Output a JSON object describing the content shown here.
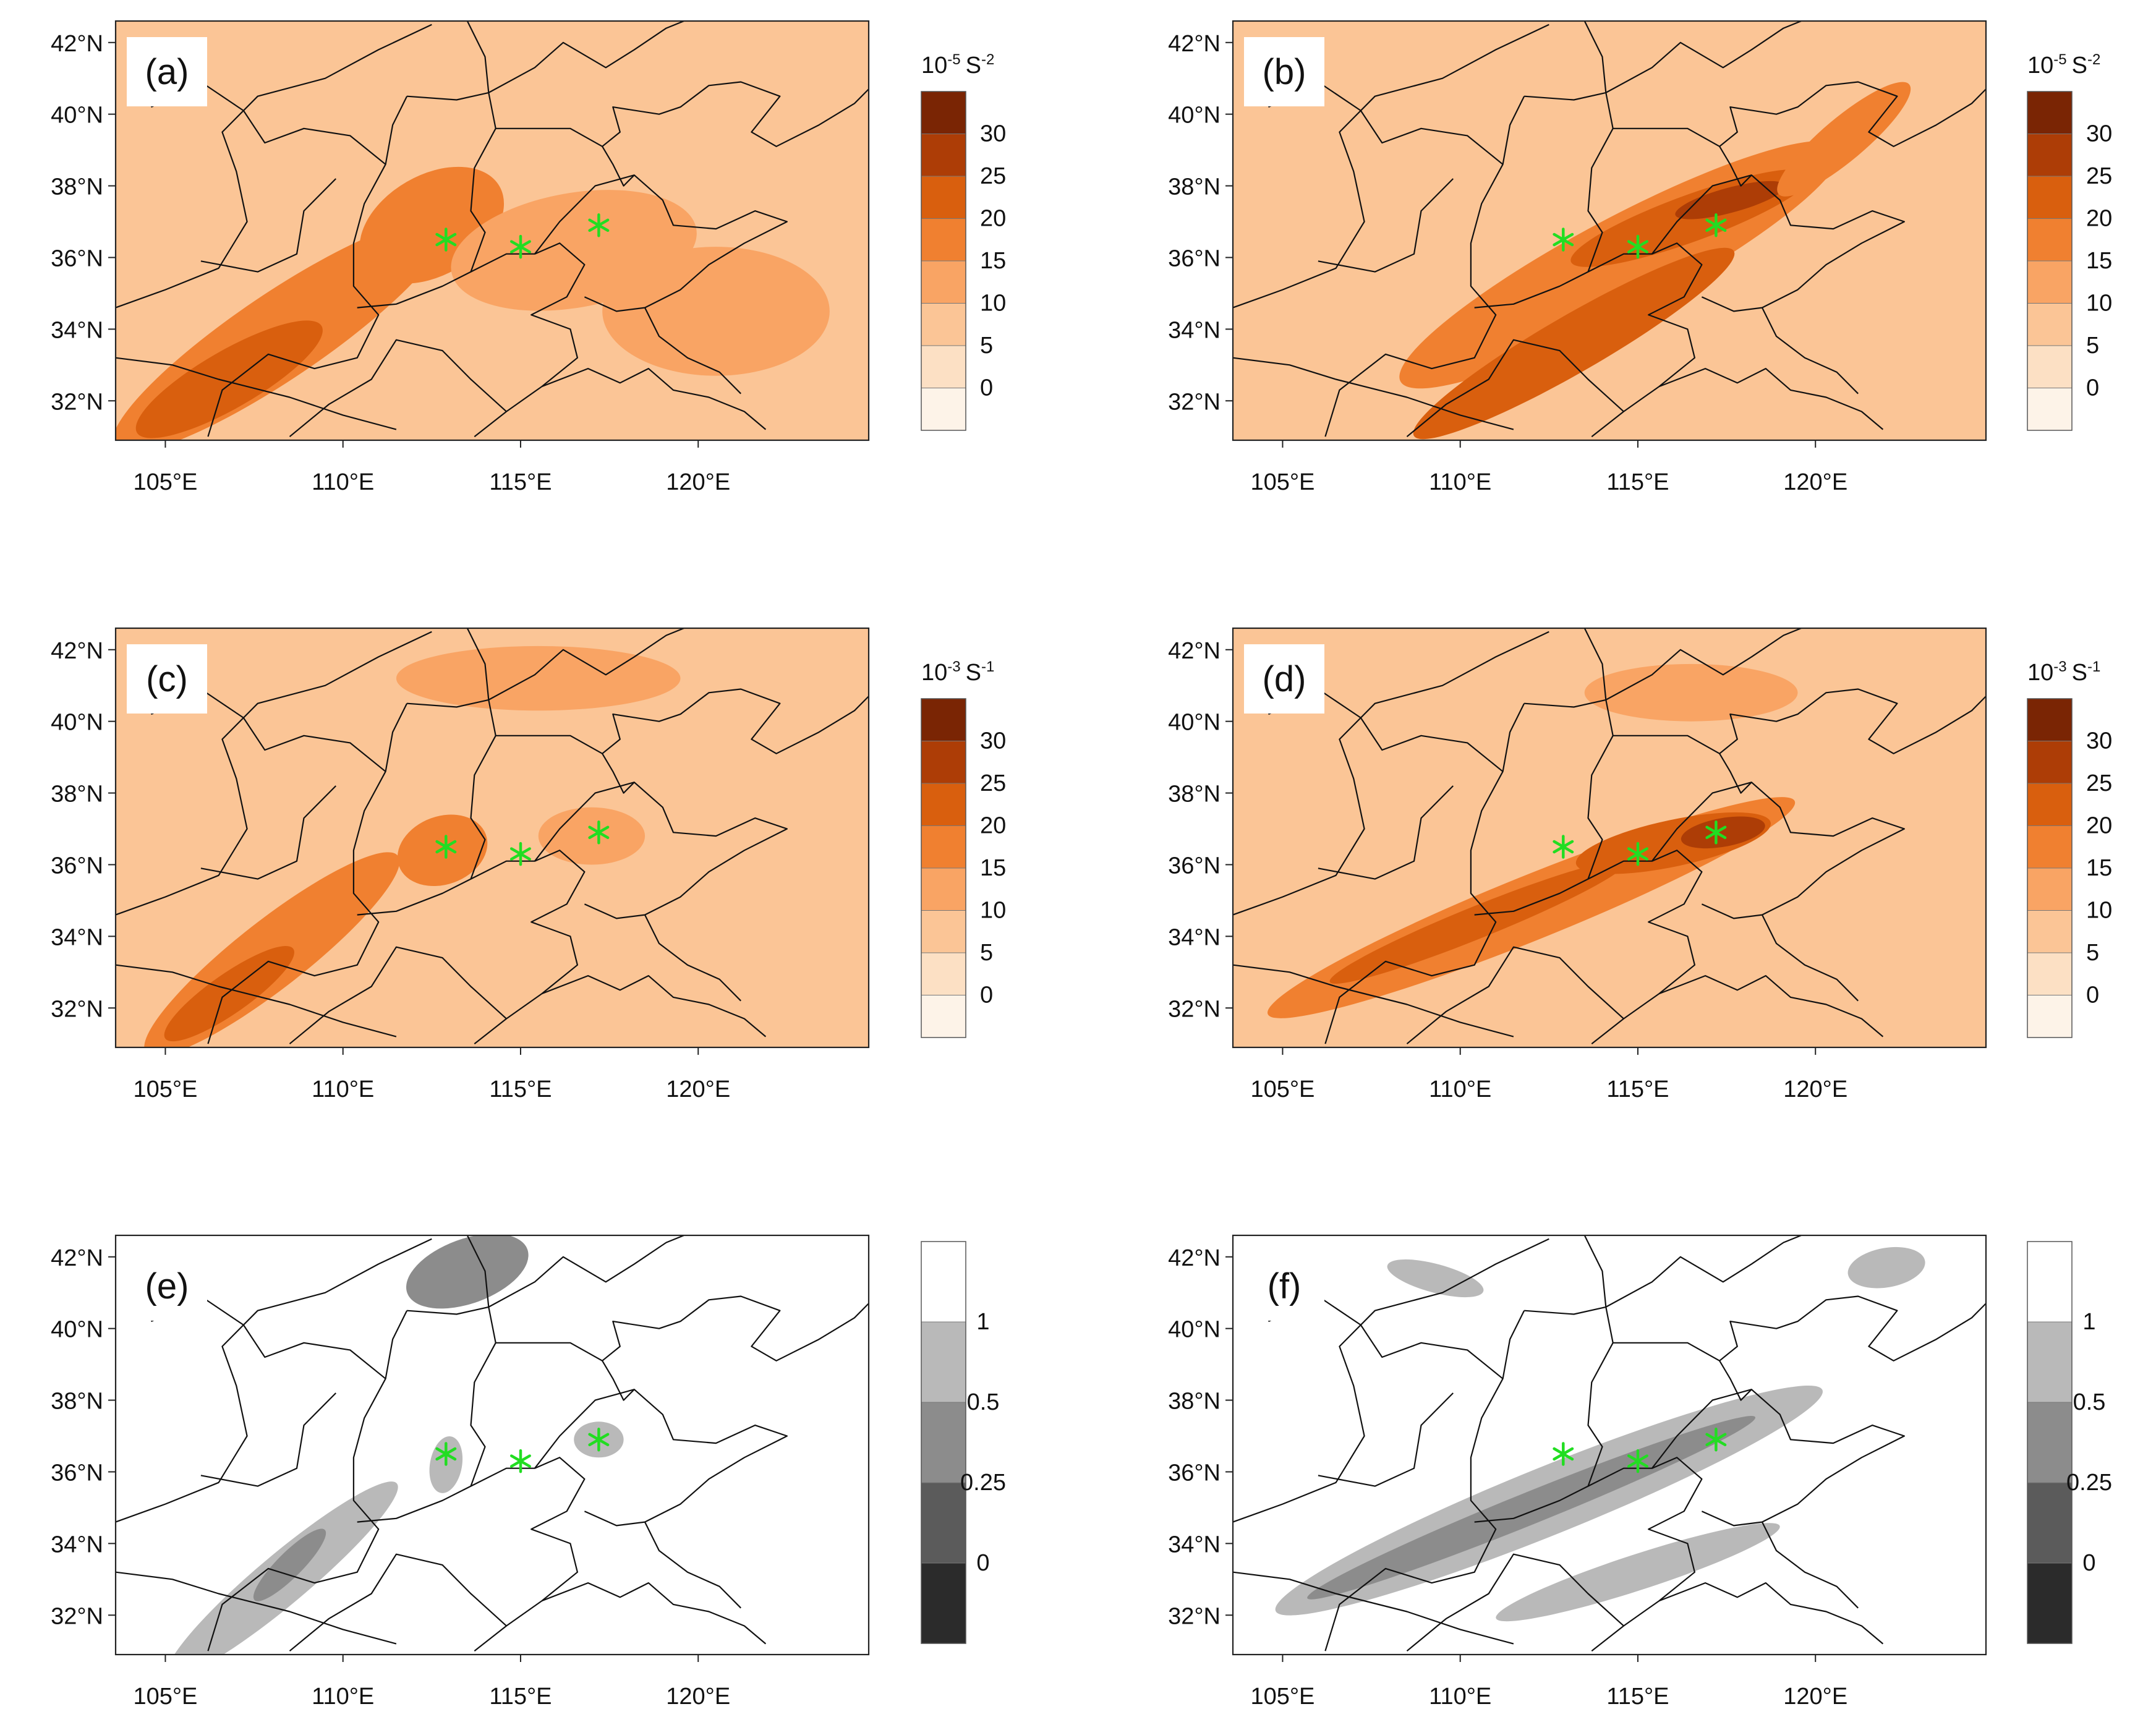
{
  "figure": {
    "y_tick_labels": [
      "42°N",
      "40°N",
      "38°N",
      "36°N",
      "34°N",
      "32°N"
    ],
    "y_tick_values": [
      42,
      40,
      38,
      36,
      34,
      32
    ],
    "x_tick_labels": [
      "105°E",
      "110°E",
      "115°E",
      "120°E"
    ],
    "x_tick_values": [
      105,
      110,
      115,
      120
    ],
    "lon_range": [
      103.6,
      124.8
    ],
    "lat_range": [
      30.9,
      42.6
    ],
    "stations": [
      {
        "lon": 112.9,
        "lat": 36.5
      },
      {
        "lon": 115.0,
        "lat": 36.3
      },
      {
        "lon": 117.2,
        "lat": 36.9
      }
    ],
    "station_color": "#22dd22",
    "boundary_color": "#111111"
  },
  "palettes": {
    "orange": [
      "#fdf3e8",
      "#fce0c4",
      "#fbc596",
      "#f9a464",
      "#f08030",
      "#d95f0e",
      "#ad3d06",
      "#7a2504"
    ],
    "gray": [
      "#2b2b2b",
      "#5b5b5b",
      "#8c8c8c",
      "#b9b9b9",
      "#ffffff"
    ]
  },
  "colorbars": {
    "row1": {
      "unit_base": "10",
      "unit_exp": "-5",
      "unit_sym": "S",
      "unit_sym_exp": "-2",
      "labels": [
        "30",
        "25",
        "20",
        "15",
        "10",
        "5",
        "0"
      ]
    },
    "row2": {
      "unit_base": "10",
      "unit_exp": "-3",
      "unit_sym": "S",
      "unit_sym_exp": "-1",
      "labels": [
        "30",
        "25",
        "20",
        "15",
        "10",
        "5",
        "0"
      ]
    },
    "row3": {
      "labels": [
        "1",
        "0.5",
        "0.25",
        "0"
      ]
    }
  },
  "panels": [
    {
      "label": "(a)",
      "palette": "orange",
      "colorbar": "row1",
      "blobs": [
        {
          "lon": 108.2,
          "lat": 33.8,
          "rx": 5.6,
          "ry": 1.2,
          "rot": -34,
          "level": 4
        },
        {
          "lon": 106.8,
          "lat": 32.6,
          "rx": 3.0,
          "ry": 0.8,
          "rot": -30,
          "level": 5
        },
        {
          "lon": 112.5,
          "lat": 36.9,
          "rx": 2.2,
          "ry": 1.4,
          "rot": -30,
          "level": 4
        },
        {
          "lon": 116.5,
          "lat": 36.2,
          "rx": 3.5,
          "ry": 1.6,
          "rot": -10,
          "level": 3
        },
        {
          "lon": 120.5,
          "lat": 34.5,
          "rx": 3.2,
          "ry": 1.8,
          "rot": 0,
          "level": 3
        }
      ]
    },
    {
      "label": "(b)",
      "palette": "orange",
      "colorbar": "row1",
      "blobs": [
        {
          "lon": 114.5,
          "lat": 35.8,
          "rx": 7.0,
          "ry": 1.3,
          "rot": -28,
          "level": 4
        },
        {
          "lon": 116.5,
          "lat": 37.1,
          "rx": 3.6,
          "ry": 0.65,
          "rot": -20,
          "level": 5
        },
        {
          "lon": 117.6,
          "lat": 37.6,
          "rx": 1.6,
          "ry": 0.35,
          "rot": -15,
          "level": 6
        },
        {
          "lon": 113.2,
          "lat": 33.6,
          "rx": 5.2,
          "ry": 0.8,
          "rot": -30,
          "level": 5
        },
        {
          "lon": 120.8,
          "lat": 39.3,
          "rx": 2.4,
          "ry": 0.6,
          "rot": -40,
          "level": 4
        }
      ]
    },
    {
      "label": "(c)",
      "palette": "orange",
      "colorbar": "row2",
      "blobs": [
        {
          "lon": 108.0,
          "lat": 33.5,
          "rx": 4.5,
          "ry": 0.95,
          "rot": -38,
          "level": 4
        },
        {
          "lon": 106.8,
          "lat": 32.4,
          "rx": 2.2,
          "ry": 0.55,
          "rot": -35,
          "level": 5
        },
        {
          "lon": 112.8,
          "lat": 36.4,
          "rx": 1.3,
          "ry": 0.95,
          "rot": -20,
          "level": 4
        },
        {
          "lon": 117.0,
          "lat": 36.8,
          "rx": 1.5,
          "ry": 0.8,
          "rot": 0,
          "level": 3
        },
        {
          "lon": 115.5,
          "lat": 41.2,
          "rx": 4.0,
          "ry": 0.9,
          "rot": 0,
          "level": 3
        }
      ]
    },
    {
      "label": "(d)",
      "palette": "orange",
      "colorbar": "row2",
      "blobs": [
        {
          "lon": 112.0,
          "lat": 34.8,
          "rx": 8.0,
          "ry": 0.9,
          "rot": -22,
          "level": 4
        },
        {
          "lon": 110.5,
          "lat": 34.4,
          "rx": 4.5,
          "ry": 0.45,
          "rot": -22,
          "level": 5
        },
        {
          "lon": 116.0,
          "lat": 36.6,
          "rx": 2.8,
          "ry": 0.65,
          "rot": -12,
          "level": 5
        },
        {
          "lon": 117.4,
          "lat": 36.9,
          "rx": 1.2,
          "ry": 0.4,
          "rot": -10,
          "level": 6
        },
        {
          "lon": 116.5,
          "lat": 40.8,
          "rx": 3.0,
          "ry": 0.8,
          "rot": 0,
          "level": 3
        }
      ]
    },
    {
      "label": "(e)",
      "palette": "gray",
      "colorbar": "row3",
      "blobs": [
        {
          "lon": 108.3,
          "lat": 33.0,
          "rx": 4.2,
          "ry": 0.7,
          "rot": -40,
          "level": 3
        },
        {
          "lon": 108.5,
          "lat": 33.4,
          "rx": 1.4,
          "ry": 0.35,
          "rot": -45,
          "level": 2
        },
        {
          "lon": 113.5,
          "lat": 41.6,
          "rx": 1.8,
          "ry": 0.9,
          "rot": -20,
          "level": 2
        },
        {
          "lon": 112.9,
          "lat": 36.2,
          "rx": 0.45,
          "ry": 0.8,
          "rot": 10,
          "level": 3
        },
        {
          "lon": 117.2,
          "lat": 36.9,
          "rx": 0.7,
          "ry": 0.5,
          "rot": 0,
          "level": 3
        }
      ]
    },
    {
      "label": "(f)",
      "palette": "gray",
      "colorbar": "row3",
      "blobs": [
        {
          "lon": 112.5,
          "lat": 35.2,
          "rx": 8.3,
          "ry": 0.95,
          "rot": -22,
          "level": 3
        },
        {
          "lon": 112.0,
          "lat": 35.0,
          "rx": 6.8,
          "ry": 0.45,
          "rot": -22,
          "level": 2
        },
        {
          "lon": 115.0,
          "lat": 33.2,
          "rx": 4.2,
          "ry": 0.5,
          "rot": -18,
          "level": 3
        },
        {
          "lon": 122.0,
          "lat": 41.7,
          "rx": 1.1,
          "ry": 0.55,
          "rot": -10,
          "level": 3
        },
        {
          "lon": 109.3,
          "lat": 41.4,
          "rx": 1.4,
          "ry": 0.4,
          "rot": 15,
          "level": 3
        }
      ]
    }
  ]
}
